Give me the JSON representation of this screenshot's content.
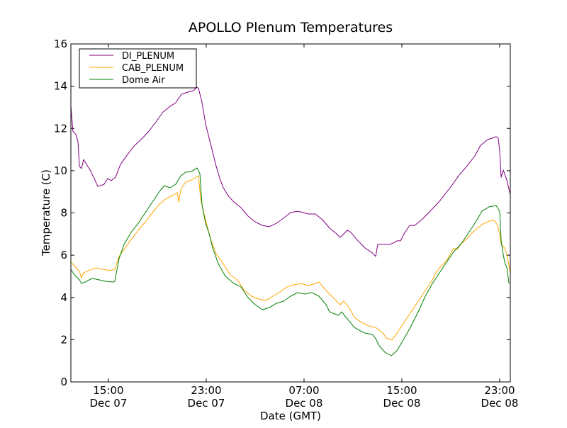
{
  "chart_data": {
    "type": "line",
    "title": "APOLLO Plenum Temperatures",
    "xlabel": "Date (GMT)",
    "ylabel": "Temperature (C)",
    "x_unit": "hours since Dec 07 00:00 GMT",
    "xlim": [
      11.93,
      47.87
    ],
    "ylim": [
      0,
      16
    ],
    "yticks": [
      0,
      2,
      4,
      6,
      8,
      10,
      12,
      14,
      16
    ],
    "xticks": [
      {
        "value": 15,
        "time": "15:00",
        "date": "Dec 07"
      },
      {
        "value": 23,
        "time": "23:00",
        "date": "Dec 07"
      },
      {
        "value": 31,
        "time": "07:00",
        "date": "Dec 08"
      },
      {
        "value": 39,
        "time": "15:00",
        "date": "Dec 08"
      },
      {
        "value": 47,
        "time": "23:00",
        "date": "Dec 08"
      }
    ],
    "grid": false,
    "legend_position": "top-left",
    "series": [
      {
        "name": "DI_PLENUM",
        "color": "#800080",
        "x": [
          11.93,
          12.1,
          12.34,
          12.51,
          12.63,
          12.8,
          12.97,
          13.21,
          13.5,
          13.84,
          14.13,
          14.36,
          14.65,
          14.94,
          15.23,
          15.58,
          15.99,
          16.57,
          17.15,
          17.73,
          18.31,
          18.89,
          19.47,
          20.05,
          20.51,
          20.97,
          21.5,
          21.96,
          22.25,
          22.37,
          22.66,
          22.95,
          23.24,
          23.53,
          23.82,
          24.11,
          24.4,
          24.86,
          25.26,
          25.84,
          26.42,
          27.0,
          27.58,
          28.16,
          28.74,
          29.32,
          29.9,
          30.48,
          30.94,
          31.35,
          31.93,
          32.51,
          33.09,
          33.67,
          33.96,
          34.54,
          34.83,
          35.41,
          35.99,
          36.57,
          36.86,
          37.03,
          37.44,
          38.02,
          38.31,
          38.6,
          38.89,
          39.18,
          39.64,
          40.05,
          40.63,
          41.21,
          42.08,
          42.94,
          43.7,
          44.4,
          44.97,
          45.44,
          46.01,
          46.71,
          46.88,
          47.0,
          47.12,
          47.3,
          47.59,
          47.87
        ],
        "y": [
          13.05,
          11.87,
          11.71,
          11.37,
          10.2,
          10.1,
          10.53,
          10.3,
          10.03,
          9.63,
          9.26,
          9.29,
          9.36,
          9.63,
          9.53,
          9.69,
          10.3,
          10.77,
          11.2,
          11.51,
          11.87,
          12.31,
          12.78,
          13.05,
          13.22,
          13.62,
          13.72,
          13.79,
          13.95,
          13.89,
          13.22,
          12.21,
          11.54,
          10.87,
          10.2,
          9.63,
          9.19,
          8.76,
          8.52,
          8.25,
          7.85,
          7.58,
          7.41,
          7.35,
          7.51,
          7.75,
          8.02,
          8.08,
          8.02,
          7.95,
          7.95,
          7.68,
          7.28,
          7.01,
          6.84,
          7.18,
          7.08,
          6.68,
          6.34,
          6.11,
          5.94,
          6.51,
          6.51,
          6.51,
          6.58,
          6.68,
          6.68,
          7.01,
          7.41,
          7.41,
          7.68,
          8.02,
          8.55,
          9.19,
          9.8,
          10.27,
          10.7,
          11.2,
          11.47,
          11.61,
          11.54,
          10.97,
          9.69,
          10.03,
          9.53,
          8.86
        ]
      },
      {
        "name": "CAB_PLENUM",
        "color": "#ffa500",
        "x": [
          11.93,
          12.22,
          12.63,
          12.8,
          12.97,
          13.38,
          13.96,
          14.54,
          15.12,
          15.52,
          15.87,
          16.28,
          16.86,
          17.44,
          18.02,
          18.6,
          19.18,
          19.76,
          20.34,
          20.63,
          20.75,
          20.92,
          21.32,
          21.79,
          22.37,
          22.54,
          22.77,
          23.06,
          23.41,
          23.81,
          24.39,
          24.97,
          25.55,
          26.13,
          26.71,
          27.29,
          27.87,
          28.45,
          29.03,
          29.61,
          30.19,
          30.77,
          31.35,
          31.93,
          32.22,
          32.8,
          33.38,
          33.96,
          34.25,
          34.65,
          35.12,
          35.7,
          36.28,
          36.86,
          37.44,
          37.73,
          38.19,
          38.6,
          39.18,
          39.76,
          40.34,
          40.92,
          41.5,
          41.79,
          42.08,
          42.66,
          43.24,
          43.53,
          43.82,
          44.4,
          44.97,
          45.55,
          46.13,
          46.54,
          46.83,
          47.0,
          47.12,
          47.41,
          47.59,
          47.87
        ],
        "y": [
          5.67,
          5.5,
          5.23,
          4.93,
          5.17,
          5.27,
          5.4,
          5.33,
          5.27,
          5.33,
          5.94,
          6.27,
          6.74,
          7.18,
          7.58,
          8.02,
          8.42,
          8.69,
          8.86,
          8.96,
          8.52,
          9.12,
          9.46,
          9.56,
          9.76,
          8.69,
          8.08,
          7.41,
          6.68,
          6.07,
          5.6,
          5.07,
          4.83,
          4.33,
          4.06,
          3.92,
          3.86,
          4.06,
          4.26,
          4.5,
          4.6,
          4.66,
          4.56,
          4.66,
          4.73,
          4.33,
          3.99,
          3.66,
          3.82,
          3.56,
          3.05,
          2.82,
          2.65,
          2.58,
          2.31,
          2.08,
          1.98,
          2.31,
          2.82,
          3.32,
          3.82,
          4.33,
          4.83,
          5.17,
          5.4,
          5.74,
          6.34,
          6.27,
          6.51,
          6.84,
          7.18,
          7.45,
          7.61,
          7.65,
          7.41,
          7.01,
          6.51,
          6.34,
          6.0,
          5.17
        ]
      },
      {
        "name": "Dome Air",
        "color": "#008000",
        "x": [
          11.93,
          12.22,
          12.63,
          12.8,
          13.09,
          13.67,
          14.25,
          14.83,
          15.41,
          15.52,
          15.87,
          16.28,
          16.86,
          17.44,
          18.02,
          18.6,
          19.18,
          19.58,
          20.05,
          20.51,
          20.92,
          21.32,
          21.79,
          22.25,
          22.48,
          22.66,
          22.95,
          23.24,
          23.53,
          23.99,
          24.57,
          25.26,
          25.84,
          26.42,
          27.0,
          27.58,
          28.16,
          28.74,
          29.32,
          29.9,
          30.48,
          31.06,
          31.64,
          32.22,
          32.8,
          33.09,
          33.38,
          33.84,
          34.07,
          34.54,
          35.12,
          35.7,
          35.99,
          36.57,
          36.86,
          37.15,
          37.61,
          38.13,
          38.6,
          39.18,
          39.76,
          40.34,
          40.92,
          41.5,
          42.08,
          42.66,
          43.24,
          43.82,
          44.4,
          44.97,
          45.55,
          46.13,
          46.71,
          47.0,
          47.12,
          47.3,
          47.41,
          47.59,
          47.76
        ],
        "y": [
          5.33,
          5.07,
          4.83,
          4.66,
          4.73,
          4.9,
          4.83,
          4.76,
          4.73,
          4.76,
          5.84,
          6.51,
          7.08,
          7.51,
          8.02,
          8.52,
          9.02,
          9.29,
          9.19,
          9.36,
          9.76,
          9.93,
          9.96,
          10.13,
          9.86,
          8.35,
          7.51,
          7.01,
          6.34,
          5.6,
          5.0,
          4.66,
          4.5,
          3.99,
          3.66,
          3.42,
          3.52,
          3.72,
          3.82,
          4.06,
          4.23,
          4.16,
          4.23,
          4.06,
          3.66,
          3.32,
          3.25,
          3.15,
          3.32,
          2.99,
          2.58,
          2.38,
          2.31,
          2.25,
          2.05,
          1.71,
          1.41,
          1.24,
          1.48,
          2.05,
          2.65,
          3.32,
          4.06,
          4.66,
          5.17,
          5.67,
          6.17,
          6.51,
          7.01,
          7.51,
          8.08,
          8.29,
          8.35,
          8.08,
          6.68,
          6.0,
          5.67,
          5.4,
          4.66
        ]
      }
    ]
  }
}
